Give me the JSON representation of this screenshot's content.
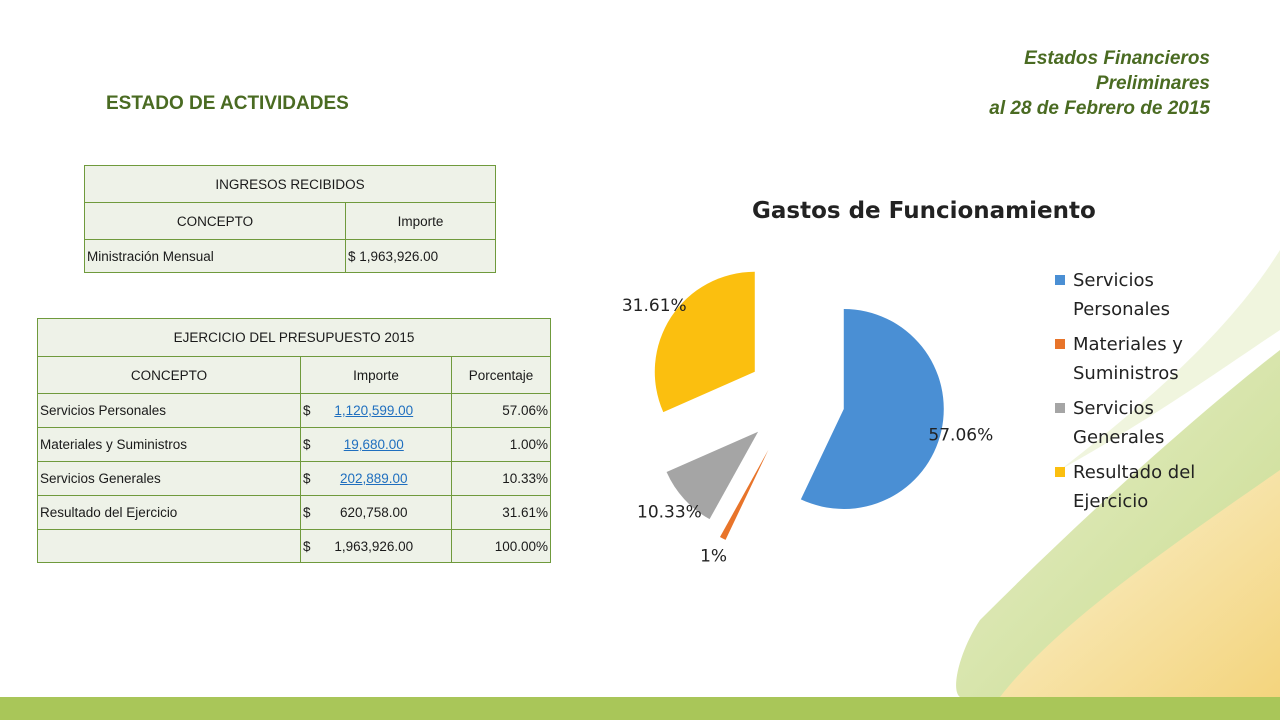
{
  "slide": {
    "title": "ESTADO DE ACTIVIDADES",
    "header_lines": [
      "Estados Financieros",
      "Preliminares",
      "al 28 de Febrero de 2015"
    ]
  },
  "ingresos_table": {
    "caption": "INGRESOS RECIBIDOS",
    "headers": [
      "CONCEPTO",
      "Importe"
    ],
    "rows": [
      {
        "concepto": "Ministración Mensual",
        "currency": "$",
        "importe": "1,963,926.00"
      }
    ]
  },
  "ejercicio_table": {
    "caption": "EJERCICIO DEL PRESUPUESTO 2015",
    "headers": [
      "CONCEPTO",
      "Importe",
      "Porcentaje"
    ],
    "rows": [
      {
        "concepto": "Servicios Personales",
        "currency": "$",
        "importe": "1,120,599.00",
        "linked": true,
        "porcentaje": "57.06%"
      },
      {
        "concepto": "Materiales y Suministros",
        "currency": "$",
        "importe": "19,680.00",
        "linked": true,
        "porcentaje": "1.00%"
      },
      {
        "concepto": "Servicios Generales",
        "currency": "$",
        "importe": "202,889.00",
        "linked": true,
        "porcentaje": "10.33%"
      },
      {
        "concepto": "Resultado del Ejercicio",
        "currency": "$",
        "importe": "620,758.00",
        "linked": false,
        "porcentaje": "31.61%"
      }
    ],
    "total": {
      "currency": "$",
      "importe": "1,963,926.00",
      "porcentaje": "100.00%"
    }
  },
  "chart_data": {
    "type": "pie",
    "title": "Gastos de Funcionamiento",
    "legend_position": "right",
    "series": [
      {
        "name": "Servicios Personales",
        "value": 57.06,
        "label": "57.06%",
        "color": "#4a8fd4",
        "legend_lines": [
          "Servicios",
          "Personales"
        ]
      },
      {
        "name": "Materiales y Suministros",
        "value": 1.0,
        "label": "1%",
        "color": "#e8742a",
        "legend_lines": [
          "Materiales y",
          "Suministros"
        ]
      },
      {
        "name": "Servicios Generales",
        "value": 10.33,
        "label": "10.33%",
        "color": "#a5a5a5",
        "legend_lines": [
          "Servicios",
          "Generales"
        ]
      },
      {
        "name": "Resultado del Ejercicio",
        "value": 31.61,
        "label": "31.61%",
        "color": "#fbbf0f",
        "legend_lines": [
          "Resultado del",
          "Ejercicio"
        ]
      }
    ]
  }
}
